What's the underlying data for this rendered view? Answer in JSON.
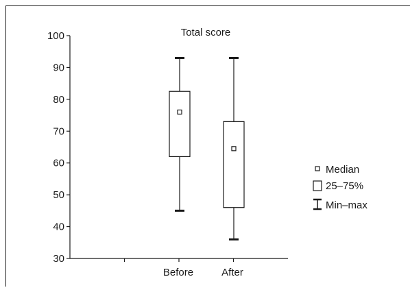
{
  "chart_data": {
    "type": "boxplot",
    "title": "Total score",
    "xlabel": "",
    "ylabel": "",
    "ylim": [
      30,
      100
    ],
    "yticks": [
      30,
      40,
      50,
      60,
      70,
      80,
      90,
      100
    ],
    "yticks_labels": [
      "30",
      "40",
      "50",
      "60",
      "70",
      "80",
      "90",
      "100"
    ],
    "grid": false,
    "legend_position": "right",
    "categories": [
      "Before",
      "After"
    ],
    "boxes": [
      {
        "category": "Before",
        "min": 45,
        "q1": 62,
        "median": 76,
        "q3": 82.5,
        "max": 93
      },
      {
        "category": "After",
        "min": 36,
        "q1": 46,
        "median": 64.5,
        "q3": 73,
        "max": 93
      }
    ],
    "legend": [
      {
        "key": "median",
        "label": "Median"
      },
      {
        "key": "iqr",
        "label": "25–75%"
      },
      {
        "key": "range",
        "label": "Min–max"
      }
    ],
    "colors": {
      "line": "#1a1a1a",
      "box_fill": "#ffffff",
      "background": "#ffffff"
    }
  }
}
